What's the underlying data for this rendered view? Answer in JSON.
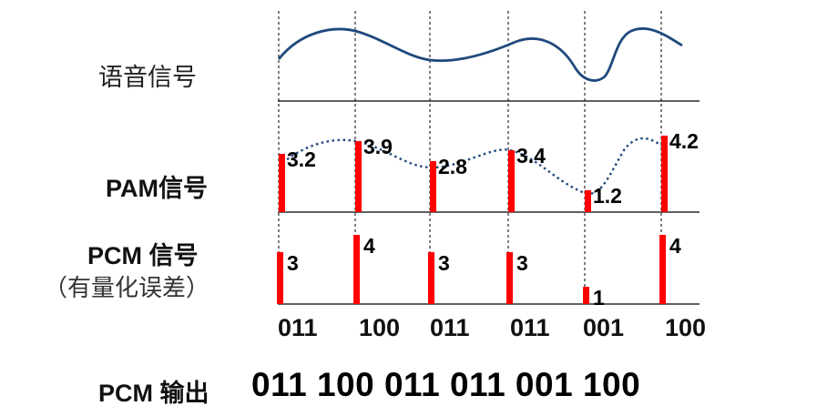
{
  "rows": {
    "speech_label": "语音信号",
    "pam_label": "PAM信号",
    "pcm_label": "PCM 信号",
    "pcm_sublabel": "（有量化误差）",
    "output_label": "PCM 输出"
  },
  "pam_values": [
    "3.2",
    "3.9",
    "2.8",
    "3.4",
    "1.2",
    "4.2"
  ],
  "pcm_levels": [
    "3",
    "4",
    "3",
    "3",
    "1",
    "4"
  ],
  "pcm_codes": [
    "011",
    "100",
    "011",
    "011",
    "001",
    "100"
  ],
  "pcm_output": "011 100 011 011 001 100",
  "colors": {
    "bar": "#ff0000",
    "wave": "#1f497d",
    "axis": "#000000",
    "text": "#000000"
  }
}
